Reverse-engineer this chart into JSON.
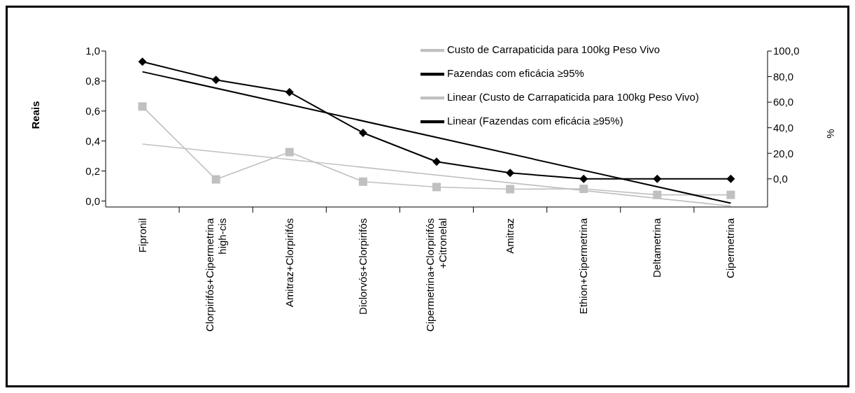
{
  "chart_data": {
    "type": "line",
    "ylabel": "Reais",
    "y2label": "%",
    "categories": [
      "Fipronil",
      "Clorpirifós+Cipermetrina high-cis",
      "Amitraz+Clorpirifós",
      "Diclorvós+Clorpirifós",
      "Cipermetrina+Clorpirifós +Citronelal",
      "Amitraz",
      "Ethion+Cipermetrina",
      "Deltametrina",
      "Cipermetrina"
    ],
    "series": [
      {
        "name": "Custo de Carrapaticida para 100kg Peso Vivo",
        "color": "#c0c0c0",
        "marker": "square",
        "values": [
          0.63,
          0.144,
          0.326,
          0.129,
          0.093,
          0.079,
          0.081,
          0.041,
          0.041
        ]
      },
      {
        "name": "Fazendas com eficácia ≥95%",
        "color": "#000000",
        "marker": "diamond",
        "axis": "y2",
        "values": [
          91.7,
          77.4,
          67.8,
          36,
          13.4,
          4.7,
          0,
          0,
          0
        ]
      },
      {
        "name": "Linear (Custo de Carrapaticida para 100kg Peso Vivo)",
        "color": "#c0c0c0",
        "marker": "none",
        "x": [
          "Fipronil",
          "Cipermetrina"
        ],
        "values": [
          0.38,
          -0.034
        ]
      },
      {
        "name": "Linear (Fazendas com eficácia ≥95%)",
        "color": "#000000",
        "marker": "none",
        "axis": "y2",
        "x": [
          "Fipronil",
          "Cipermetrina"
        ],
        "values": [
          83.8,
          -19
        ]
      }
    ],
    "ylim": [
      -0.04,
      1.0
    ],
    "yticks": [
      {
        "value": 0,
        "label": "0,0"
      },
      {
        "value": 0.2,
        "label": "0,2"
      },
      {
        "value": 0.4,
        "label": "0,4"
      },
      {
        "value": 0.6,
        "label": "0,6"
      },
      {
        "value": 0.8,
        "label": "0,8"
      },
      {
        "value": 1,
        "label": "1,0"
      }
    ],
    "y2lim": [
      -22,
      100
    ],
    "y2ticks": [
      {
        "value": 0,
        "label": "0,0"
      },
      {
        "value": 20,
        "label": "20,0"
      },
      {
        "value": 40,
        "label": "40,0"
      },
      {
        "value": 60,
        "label": "60,0"
      },
      {
        "value": 80,
        "label": "80,0"
      },
      {
        "value": 100,
        "label": "100,0"
      }
    ],
    "grid": false,
    "legend": "top right"
  }
}
